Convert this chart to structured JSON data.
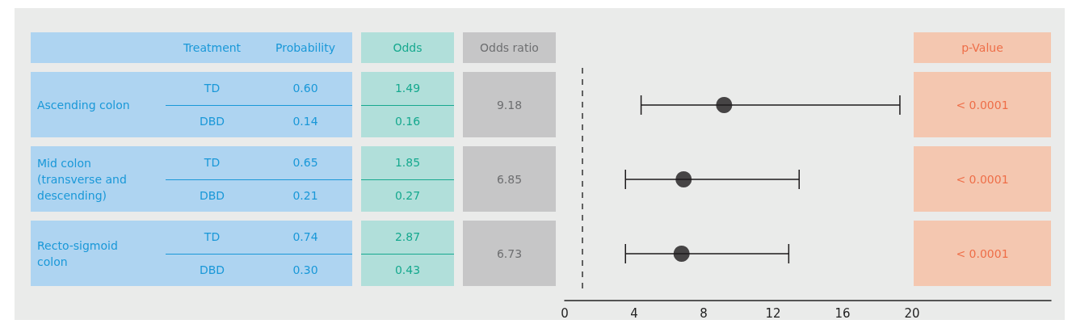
{
  "chart_data": [
    {
      "type": "other",
      "categories": [
        "Treatment",
        "Probability",
        "Odds",
        "Odds ratio",
        "p-Value"
      ],
      "y_categories": [
        "Ascending colon",
        null,
        "Mid colon (transverse and descending)",
        null,
        "Recto-sigmoid colon",
        null
      ],
      "colors": [
        "#aed4f1",
        "#aed4f1",
        "#b1dfda",
        "#c6c6c7",
        "#f4c7b0"
      ],
      "cell_labels": [
        [
          "TD",
          "0.60",
          "1.49",
          "9.18",
          "< 0.0001"
        ],
        [
          "DBD",
          "0.14",
          "0.16",
          null,
          null
        ],
        [
          "TD",
          "0.65",
          "1.85",
          "6.85",
          "< 0.0001"
        ],
        [
          "DBD",
          "0.21",
          "0.27",
          null,
          null
        ],
        [
          "TD",
          "0.74",
          "2.87",
          "6.73",
          "< 0.0001"
        ],
        [
          "DBD",
          "0.30",
          "0.43",
          null,
          null
        ]
      ]
    },
    {
      "type": "scatter",
      "orientation": "horizontal",
      "categories": [
        null,
        null,
        null
      ],
      "values": [
        9.18,
        6.85,
        6.73
      ],
      "errors": [
        [
          4.4,
          19.3
        ],
        [
          3.5,
          13.5
        ],
        [
          3.5,
          12.9
        ]
      ],
      "color": "#1d1a1b",
      "marker": "circle",
      "xlim": [
        0,
        28
      ],
      "xticks": [
        0,
        4,
        8,
        12,
        16,
        20
      ],
      "ref_lines": [
        {
          "axis": "x",
          "value": 1,
          "line_style": "dashed",
          "color": "#333333"
        }
      ],
      "tick_labels": "x",
      "grid": false
    }
  ]
}
